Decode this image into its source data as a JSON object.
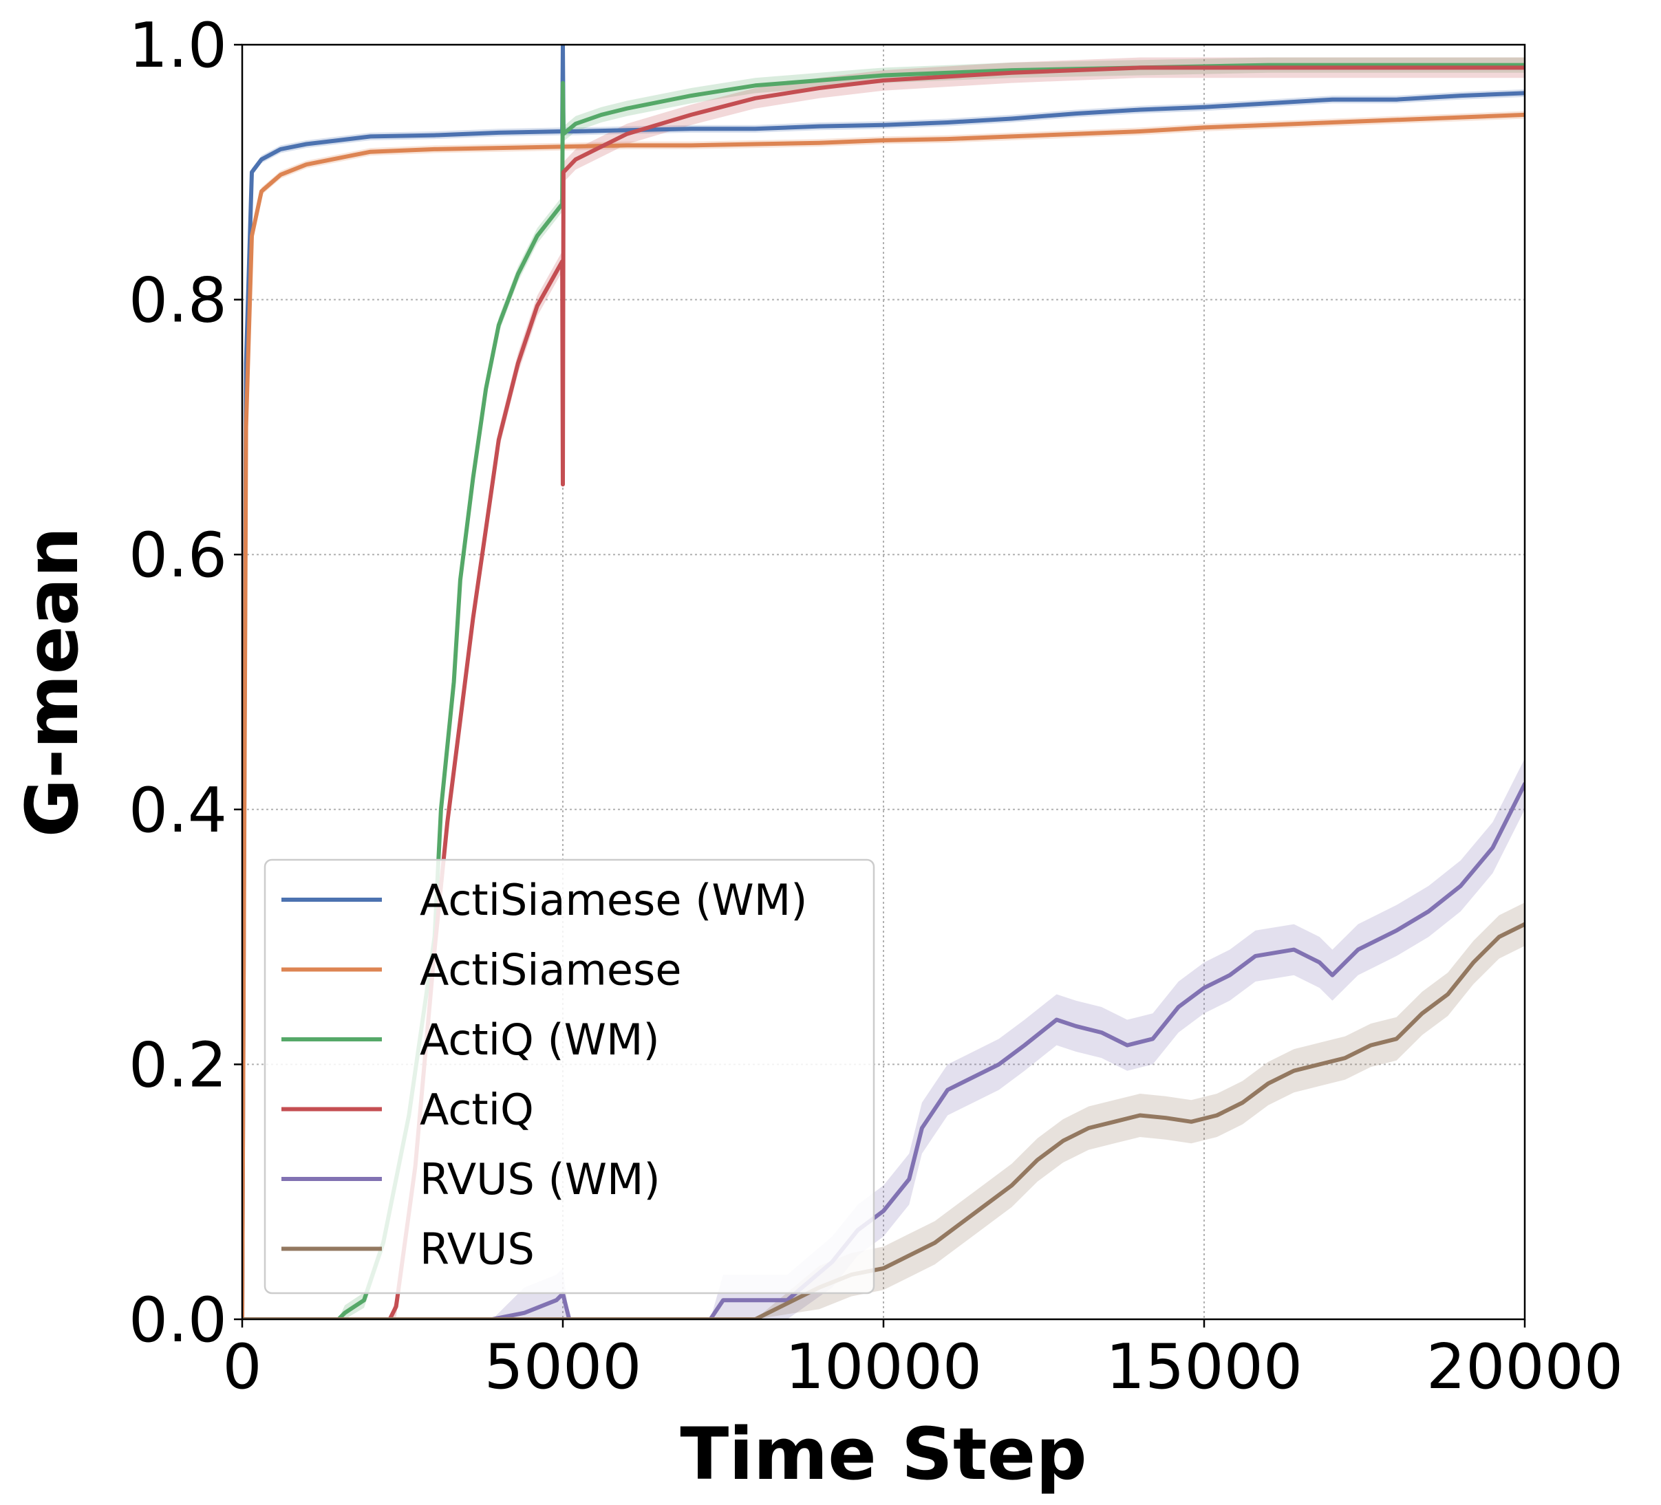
{
  "chart_data": {
    "type": "line",
    "xlabel": "Time Step",
    "ylabel": "G-mean",
    "xlim": [
      0,
      20000
    ],
    "ylim": [
      0,
      1.0
    ],
    "xticks": [
      "0",
      "5000",
      "10000",
      "15000",
      "20000"
    ],
    "yticks": [
      "0.0",
      "0.2",
      "0.4",
      "0.6",
      "0.8",
      "1.0"
    ],
    "grid": true,
    "legend_position": "lower-left",
    "series": [
      {
        "name": "ActiSiamese (WM)",
        "color": "#4c72b0",
        "x": [
          0,
          60,
          150,
          300,
          600,
          1000,
          1500,
          2000,
          3000,
          4000,
          4990,
          5000,
          5010,
          5200,
          6000,
          7000,
          8000,
          9000,
          10000,
          11000,
          12000,
          13000,
          14000,
          15000,
          16000,
          17000,
          18000,
          19000,
          20000
        ],
        "y": [
          0.0,
          0.75,
          0.9,
          0.91,
          0.918,
          0.922,
          0.925,
          0.928,
          0.929,
          0.931,
          0.932,
          1.0,
          0.932,
          0.932,
          0.933,
          0.934,
          0.934,
          0.936,
          0.937,
          0.939,
          0.942,
          0.946,
          0.949,
          0.951,
          0.954,
          0.957,
          0.957,
          0.96,
          0.962
        ],
        "band": 0.003
      },
      {
        "name": "ActiSiamese",
        "color": "#dd8452",
        "x": [
          0,
          60,
          150,
          300,
          600,
          1000,
          1500,
          2000,
          3000,
          4000,
          5000,
          6000,
          7000,
          8000,
          9000,
          10000,
          11000,
          12000,
          13000,
          14000,
          15000,
          16000,
          17000,
          18000,
          19000,
          20000
        ],
        "y": [
          0.0,
          0.7,
          0.85,
          0.885,
          0.898,
          0.906,
          0.911,
          0.916,
          0.918,
          0.919,
          0.92,
          0.921,
          0.921,
          0.922,
          0.923,
          0.925,
          0.926,
          0.928,
          0.93,
          0.932,
          0.935,
          0.937,
          0.939,
          0.941,
          0.943,
          0.945
        ],
        "band": 0.003
      },
      {
        "name": "ActiQ (WM)",
        "color": "#55a868",
        "x": [
          0,
          1500,
          1600,
          1900,
          2200,
          2600,
          3000,
          3100,
          3300,
          3400,
          3600,
          3800,
          4000,
          4300,
          4600,
          4990,
          5000,
          5010,
          5200,
          5600,
          6000,
          7000,
          8000,
          9000,
          10000,
          12000,
          14000,
          16000,
          18000,
          20000
        ],
        "y": [
          0.0,
          0.0,
          0.005,
          0.015,
          0.06,
          0.16,
          0.3,
          0.4,
          0.5,
          0.58,
          0.66,
          0.73,
          0.78,
          0.82,
          0.85,
          0.875,
          0.97,
          0.93,
          0.938,
          0.945,
          0.95,
          0.96,
          0.968,
          0.972,
          0.976,
          0.98,
          0.982,
          0.984,
          0.984,
          0.984
        ],
        "band": 0.006
      },
      {
        "name": "ActiQ",
        "color": "#c44e52",
        "x": [
          0,
          2300,
          2400,
          2700,
          3000,
          3200,
          3400,
          3600,
          3800,
          4000,
          4300,
          4600,
          4990,
          5000,
          5010,
          5200,
          5600,
          6000,
          7000,
          8000,
          9000,
          10000,
          12000,
          14000,
          16000,
          18000,
          20000
        ],
        "y": [
          0.0,
          0.0,
          0.01,
          0.12,
          0.29,
          0.39,
          0.47,
          0.55,
          0.62,
          0.69,
          0.75,
          0.795,
          0.83,
          0.655,
          0.9,
          0.91,
          0.92,
          0.93,
          0.945,
          0.958,
          0.966,
          0.972,
          0.978,
          0.982,
          0.982,
          0.982,
          0.982
        ],
        "band": 0.008
      },
      {
        "name": "RVUS (WM)",
        "color": "#8172b2",
        "x": [
          0,
          3900,
          4400,
          4900,
          5000,
          5100,
          7300,
          7500,
          8500,
          9200,
          9600,
          10000,
          10400,
          10600,
          11000,
          11400,
          11800,
          12200,
          12700,
          13000,
          13400,
          13800,
          14200,
          14600,
          15000,
          15400,
          15800,
          16400,
          16800,
          17000,
          17400,
          18000,
          18500,
          19000,
          19500,
          20000
        ],
        "y": [
          0.0,
          0.0,
          0.005,
          0.015,
          0.02,
          0.0,
          0.0,
          0.015,
          0.015,
          0.045,
          0.07,
          0.085,
          0.11,
          0.15,
          0.18,
          0.19,
          0.2,
          0.215,
          0.235,
          0.23,
          0.225,
          0.215,
          0.22,
          0.245,
          0.26,
          0.27,
          0.285,
          0.29,
          0.28,
          0.27,
          0.29,
          0.305,
          0.32,
          0.34,
          0.37,
          0.42
        ],
        "band": 0.02
      },
      {
        "name": "RVUS",
        "color": "#937860",
        "x": [
          0,
          5000,
          8000,
          9000,
          9500,
          10000,
          10400,
          10800,
          11200,
          11600,
          12000,
          12400,
          12800,
          13200,
          13600,
          14000,
          14400,
          14800,
          15200,
          15600,
          16000,
          16400,
          16800,
          17200,
          17600,
          18000,
          18400,
          18800,
          19200,
          19600,
          20000
        ],
        "y": [
          0.0,
          0.0,
          0.0,
          0.025,
          0.035,
          0.04,
          0.05,
          0.06,
          0.075,
          0.09,
          0.105,
          0.125,
          0.14,
          0.15,
          0.155,
          0.16,
          0.158,
          0.155,
          0.16,
          0.17,
          0.185,
          0.195,
          0.2,
          0.205,
          0.215,
          0.22,
          0.24,
          0.255,
          0.28,
          0.3,
          0.31
        ],
        "band": 0.017
      }
    ]
  }
}
